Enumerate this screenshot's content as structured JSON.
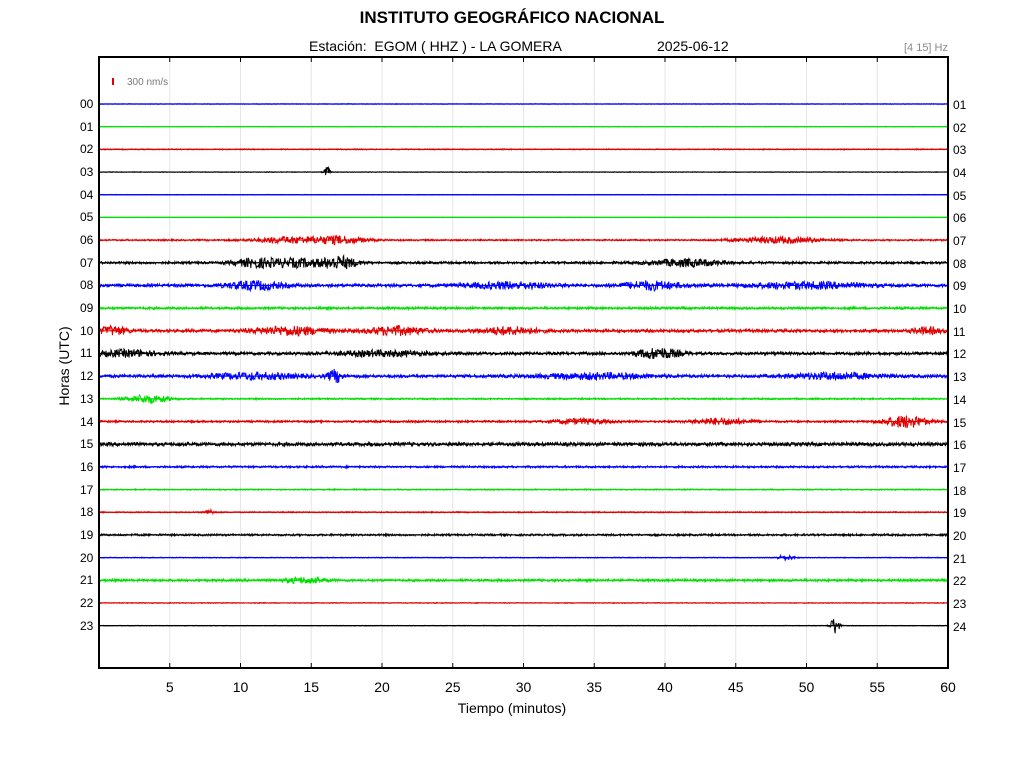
{
  "header": {
    "title": "INSTITUTO GEOGRÁFICO NACIONAL",
    "station": "Estación:  EGOM ( HHZ ) - LA GOMERA",
    "date": "2025-06-12",
    "band": "[4 15] Hz",
    "scale_label": "300 nm/s"
  },
  "chart_data": {
    "type": "line",
    "title": "INSTITUTO GEOGRÁFICO NACIONAL",
    "xlabel": "Tiempo (minutos)",
    "ylabel": "Horas (UTC)",
    "xlim": [
      0,
      60
    ],
    "x_ticks": [
      "5",
      "10",
      "15",
      "20",
      "25",
      "30",
      "35",
      "40",
      "45",
      "50",
      "55",
      "60"
    ],
    "x_tick_values": [
      5,
      10,
      15,
      20,
      25,
      30,
      35,
      40,
      45,
      50,
      55,
      60
    ],
    "grid": "vertical",
    "left_labels": [
      "00",
      "01",
      "02",
      "03",
      "04",
      "05",
      "06",
      "07",
      "08",
      "09",
      "10",
      "11",
      "12",
      "13",
      "14",
      "15",
      "16",
      "17",
      "18",
      "19",
      "20",
      "21",
      "22",
      "23"
    ],
    "right_labels": [
      "01",
      "02",
      "03",
      "04",
      "05",
      "06",
      "07",
      "08",
      "09",
      "10",
      "11",
      "12",
      "13",
      "14",
      "15",
      "16",
      "17",
      "18",
      "19",
      "20",
      "21",
      "22",
      "23",
      "24"
    ],
    "colors": [
      "#0000ff",
      "#00e000",
      "#e00000",
      "#000000"
    ],
    "color_cycle": [
      "blue",
      "green",
      "red",
      "black"
    ],
    "traces": [
      {
        "hour": "00",
        "base": 0.3,
        "events": []
      },
      {
        "hour": "01",
        "base": 0.3,
        "events": []
      },
      {
        "hour": "02",
        "base": 0.5,
        "events": []
      },
      {
        "hour": "03",
        "base": 0.3,
        "events": [
          {
            "t": 16.1,
            "amp": 6,
            "width": 0.2
          }
        ]
      },
      {
        "hour": "04",
        "base": 0.3,
        "events": []
      },
      {
        "hour": "05",
        "base": 0.3,
        "events": []
      },
      {
        "hour": "06",
        "base": 0.8,
        "events": [
          {
            "t": 13.5,
            "amp": 3,
            "width": 2.5
          },
          {
            "t": 17,
            "amp": 3.5,
            "width": 1.8
          },
          {
            "t": 48,
            "amp": 3,
            "width": 3
          }
        ]
      },
      {
        "hour": "07",
        "base": 1.2,
        "events": [
          {
            "t": 11,
            "amp": 4,
            "width": 1.5
          },
          {
            "t": 14,
            "amp": 4,
            "width": 2
          },
          {
            "t": 17,
            "amp": 6,
            "width": 1.2
          },
          {
            "t": 41.5,
            "amp": 3.5,
            "width": 2.5
          }
        ]
      },
      {
        "hour": "08",
        "base": 1.5,
        "events": [
          {
            "t": 11,
            "amp": 4,
            "width": 2
          },
          {
            "t": 29,
            "amp": 3,
            "width": 3
          },
          {
            "t": 39,
            "amp": 4,
            "width": 2
          },
          {
            "t": 50,
            "amp": 3,
            "width": 4
          }
        ]
      },
      {
        "hour": "09",
        "base": 1.2,
        "events": []
      },
      {
        "hour": "10",
        "base": 1.5,
        "events": [
          {
            "t": 1,
            "amp": 4,
            "width": 1
          },
          {
            "t": 13.5,
            "amp": 4,
            "width": 2.5
          },
          {
            "t": 21,
            "amp": 4,
            "width": 2
          },
          {
            "t": 29,
            "amp": 3.5,
            "width": 2
          },
          {
            "t": 58.5,
            "amp": 3,
            "width": 1
          }
        ]
      },
      {
        "hour": "11",
        "base": 1.5,
        "events": [
          {
            "t": 2,
            "amp": 3,
            "width": 2
          },
          {
            "t": 20,
            "amp": 2.5,
            "width": 3
          },
          {
            "t": 39.5,
            "amp": 5,
            "width": 1.5
          }
        ]
      },
      {
        "hour": "12",
        "base": 1.5,
        "events": [
          {
            "t": 11,
            "amp": 3,
            "width": 3
          },
          {
            "t": 16.7,
            "amp": 6,
            "width": 0.5
          },
          {
            "t": 35,
            "amp": 2.5,
            "width": 4
          },
          {
            "t": 52,
            "amp": 3,
            "width": 3
          }
        ]
      },
      {
        "hour": "13",
        "base": 0.8,
        "events": [
          {
            "t": 3.5,
            "amp": 4,
            "width": 1.5
          }
        ]
      },
      {
        "hour": "14",
        "base": 1.0,
        "events": [
          {
            "t": 34,
            "amp": 2.5,
            "width": 2
          },
          {
            "t": 44,
            "amp": 3,
            "width": 2
          },
          {
            "t": 57,
            "amp": 6,
            "width": 1.5
          }
        ]
      },
      {
        "hour": "15",
        "base": 1.8,
        "events": []
      },
      {
        "hour": "16",
        "base": 1.0,
        "events": []
      },
      {
        "hour": "17",
        "base": 0.6,
        "events": []
      },
      {
        "hour": "18",
        "base": 0.6,
        "events": [
          {
            "t": 7.8,
            "amp": 3,
            "width": 0.3
          }
        ]
      },
      {
        "hour": "19",
        "base": 1.0,
        "events": []
      },
      {
        "hour": "20",
        "base": 0.4,
        "events": [
          {
            "t": 48.5,
            "amp": 2.5,
            "width": 0.6
          }
        ]
      },
      {
        "hour": "21",
        "base": 1.2,
        "events": [
          {
            "t": 14.5,
            "amp": 2.5,
            "width": 1.5
          }
        ]
      },
      {
        "hour": "22",
        "base": 0.4,
        "events": []
      },
      {
        "hour": "23",
        "base": 0.3,
        "events": [
          {
            "t": 52,
            "amp": 9,
            "width": 0.3
          }
        ]
      }
    ]
  }
}
